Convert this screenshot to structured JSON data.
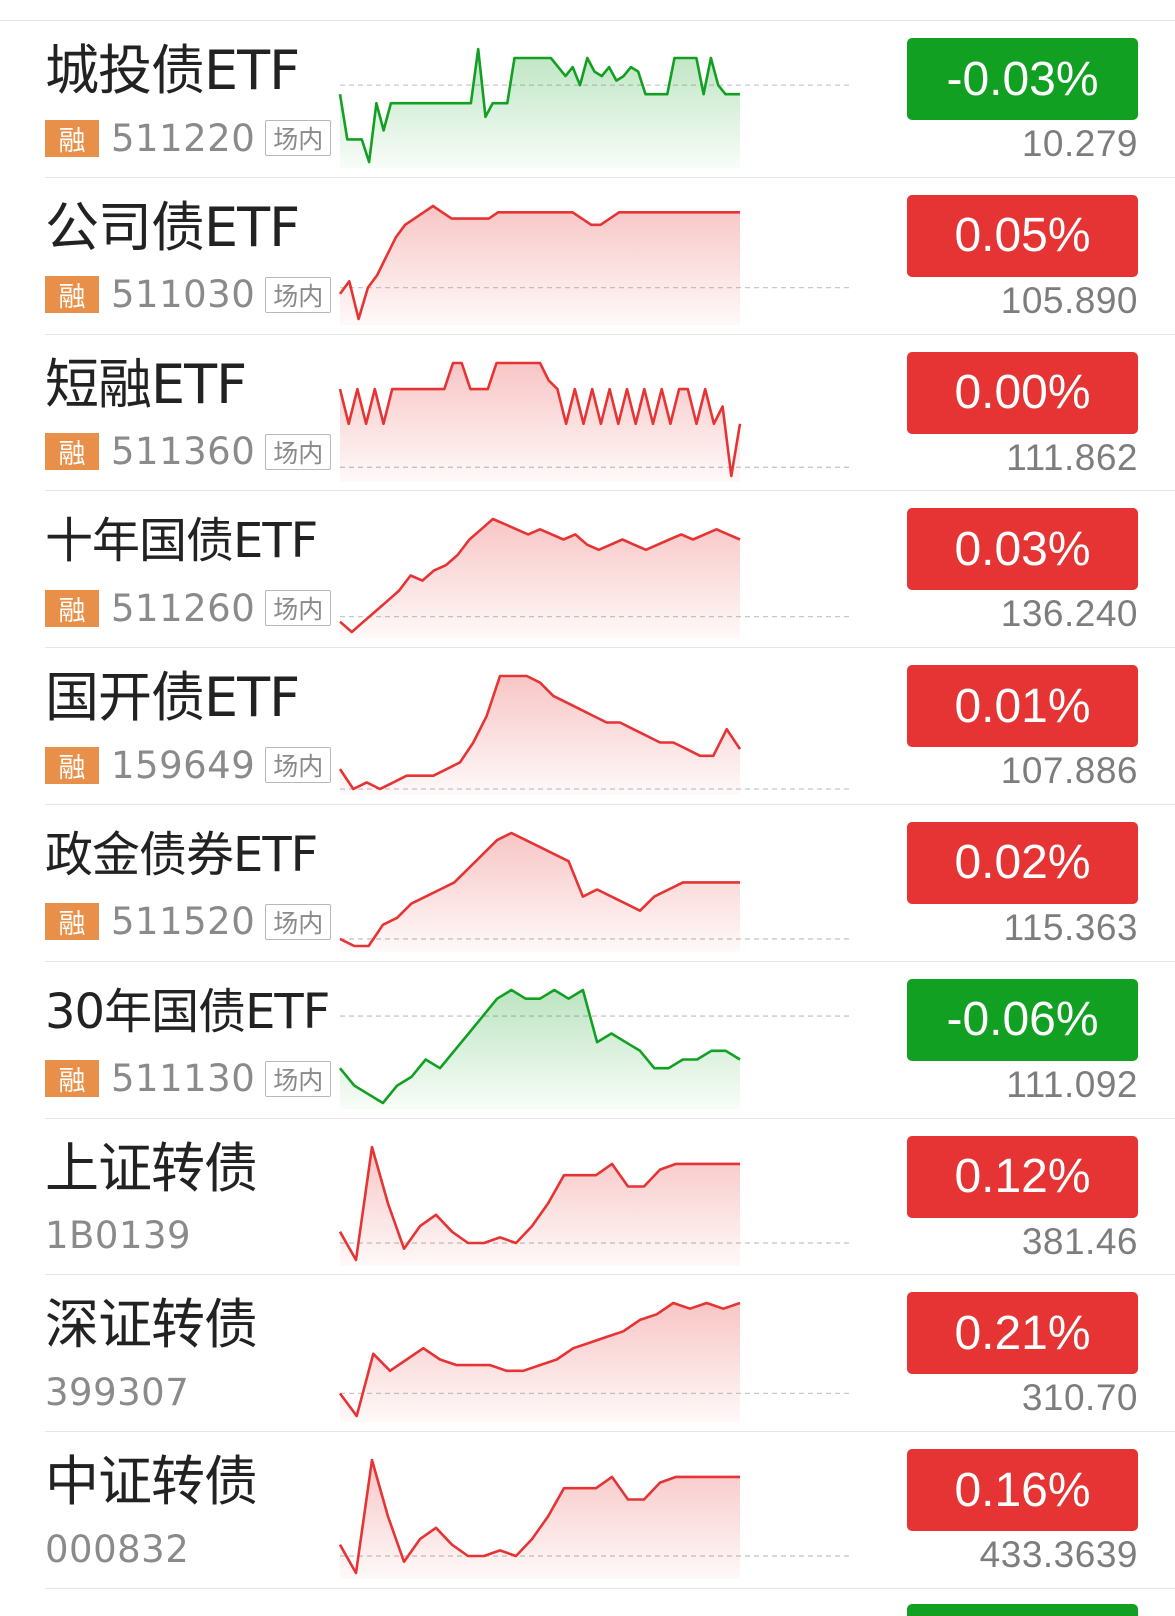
{
  "colors": {
    "up": "#e63333",
    "down": "#11a022",
    "badge": "#e8904a"
  },
  "rows": [
    {
      "name": "城投债ETF",
      "badge": "融",
      "code": "511220",
      "market": "场内",
      "change": "-0.03%",
      "price": "10.279",
      "trend": "down",
      "spark": [
        0.1,
        0.0,
        0.0,
        0.0,
        -0.05,
        0.08,
        0.02,
        0.08,
        0.08,
        0.08,
        0.08,
        0.08,
        0.08,
        0.08,
        0.08,
        0.08,
        0.08,
        0.08,
        0.08,
        0.2,
        0.05,
        0.08,
        0.08,
        0.08,
        0.18,
        0.18,
        0.18,
        0.18,
        0.18,
        0.18,
        0.16,
        0.14,
        0.16,
        0.12,
        0.18,
        0.15,
        0.14,
        0.16,
        0.13,
        0.14,
        0.16,
        0.15,
        0.1,
        0.1,
        0.1,
        0.1,
        0.18,
        0.18,
        0.18,
        0.18,
        0.1,
        0.18,
        0.12,
        0.1,
        0.1,
        0.1
      ],
      "base": 0.12
    },
    {
      "name": "公司债ETF",
      "badge": "融",
      "code": "511030",
      "market": "场内",
      "change": "0.05%",
      "price": "105.890",
      "trend": "up",
      "spark": [
        -0.01,
        0.01,
        -0.05,
        0.0,
        0.02,
        0.05,
        0.08,
        0.1,
        0.11,
        0.12,
        0.13,
        0.12,
        0.11,
        0.11,
        0.11,
        0.11,
        0.11,
        0.12,
        0.12,
        0.12,
        0.12,
        0.12,
        0.12,
        0.12,
        0.12,
        0.12,
        0.11,
        0.1,
        0.1,
        0.11,
        0.12,
        0.12,
        0.12,
        0.12,
        0.12,
        0.12,
        0.12,
        0.12,
        0.12,
        0.12,
        0.12,
        0.12,
        0.12,
        0.12
      ],
      "base": 0.0
    },
    {
      "name": "短融ETF",
      "badge": "融",
      "code": "511360",
      "market": "场内",
      "change": "0.00%",
      "price": "111.862",
      "trend": "up",
      "spark": [
        0.02,
        -0.02,
        0.02,
        -0.02,
        0.02,
        -0.02,
        0.02,
        0.02,
        0.02,
        0.02,
        0.02,
        0.02,
        0.02,
        0.05,
        0.05,
        0.02,
        0.02,
        0.02,
        0.05,
        0.05,
        0.05,
        0.05,
        0.05,
        0.05,
        0.03,
        0.02,
        -0.02,
        0.02,
        -0.02,
        0.02,
        -0.02,
        0.02,
        -0.02,
        0.02,
        -0.02,
        0.02,
        -0.02,
        0.02,
        -0.02,
        0.02,
        0.02,
        -0.02,
        0.02,
        -0.02,
        0.0,
        -0.08,
        -0.02
      ],
      "base": -0.07
    },
    {
      "name": "十年国债ETF",
      "badge": "融",
      "code": "511260",
      "market": "场内",
      "change": "0.03%",
      "price": "136.240",
      "trend": "up",
      "spark": [
        -0.01,
        -0.03,
        -0.01,
        0.01,
        0.03,
        0.05,
        0.08,
        0.07,
        0.09,
        0.1,
        0.12,
        0.15,
        0.17,
        0.19,
        0.18,
        0.17,
        0.16,
        0.17,
        0.16,
        0.15,
        0.16,
        0.14,
        0.13,
        0.14,
        0.15,
        0.14,
        0.13,
        0.14,
        0.15,
        0.16,
        0.15,
        0.16,
        0.17,
        0.16,
        0.15
      ],
      "base": 0.0
    },
    {
      "name": "国开债ETF",
      "badge": "融",
      "code": "159649",
      "market": "场内",
      "change": "0.01%",
      "price": "107.886",
      "trend": "up",
      "spark": [
        0.01,
        -0.02,
        -0.01,
        -0.02,
        -0.01,
        0.0,
        0.0,
        0.0,
        0.01,
        0.02,
        0.05,
        0.09,
        0.15,
        0.15,
        0.15,
        0.14,
        0.12,
        0.11,
        0.1,
        0.09,
        0.08,
        0.08,
        0.07,
        0.06,
        0.05,
        0.05,
        0.04,
        0.03,
        0.03,
        0.07,
        0.04
      ],
      "base": -0.02
    },
    {
      "name": "政金债券ETF",
      "badge": "融",
      "code": "511520",
      "market": "场内",
      "change": "0.02%",
      "price": "115.363",
      "trend": "up",
      "spark": [
        -0.04,
        -0.05,
        -0.05,
        -0.02,
        -0.01,
        0.01,
        0.02,
        0.03,
        0.04,
        0.06,
        0.08,
        0.1,
        0.11,
        0.1,
        0.09,
        0.08,
        0.07,
        0.02,
        0.03,
        0.02,
        0.01,
        0.0,
        0.02,
        0.03,
        0.04,
        0.04,
        0.04,
        0.04,
        0.04
      ],
      "base": -0.04
    },
    {
      "name": "30年国债ETF",
      "badge": "融",
      "code": "511130",
      "market": "场内",
      "change": "-0.06%",
      "price": "111.092",
      "trend": "down",
      "spark": [
        -0.01,
        -0.03,
        -0.04,
        -0.05,
        -0.03,
        -0.02,
        0.0,
        -0.01,
        0.01,
        0.03,
        0.05,
        0.07,
        0.08,
        0.07,
        0.07,
        0.08,
        0.07,
        0.08,
        0.02,
        0.03,
        0.02,
        0.01,
        -0.01,
        -0.01,
        0.0,
        0.0,
        0.01,
        0.01,
        0.0
      ],
      "base": 0.05
    },
    {
      "name": "上证转债",
      "badge": "",
      "code": "1B0139",
      "market": "",
      "change": "0.12%",
      "price": "381.46",
      "trend": "up",
      "spark": [
        0.0,
        -0.05,
        0.15,
        0.05,
        -0.03,
        0.01,
        0.03,
        0.0,
        -0.02,
        -0.02,
        -0.01,
        -0.02,
        0.01,
        0.05,
        0.1,
        0.1,
        0.1,
        0.12,
        0.08,
        0.08,
        0.11,
        0.12,
        0.12,
        0.12,
        0.12,
        0.12
      ],
      "base": -0.02
    },
    {
      "name": "深证转债",
      "badge": "",
      "code": "399307",
      "market": "",
      "change": "0.21%",
      "price": "310.70",
      "trend": "up",
      "spark": [
        0.0,
        -0.04,
        0.07,
        0.04,
        0.06,
        0.08,
        0.06,
        0.05,
        0.05,
        0.05,
        0.04,
        0.04,
        0.05,
        0.06,
        0.08,
        0.09,
        0.1,
        0.11,
        0.13,
        0.14,
        0.16,
        0.15,
        0.16,
        0.15,
        0.16
      ],
      "base": 0.0
    },
    {
      "name": "中证转债",
      "badge": "",
      "code": "000832",
      "market": "",
      "change": "0.16%",
      "price": "433.3639",
      "trend": "up",
      "spark": [
        0.0,
        -0.05,
        0.15,
        0.05,
        -0.03,
        0.01,
        0.03,
        0.0,
        -0.02,
        -0.02,
        -0.01,
        -0.02,
        0.01,
        0.05,
        0.1,
        0.1,
        0.1,
        0.12,
        0.08,
        0.08,
        0.11,
        0.12,
        0.12,
        0.12,
        0.12,
        0.12
      ],
      "base": -0.02
    }
  ]
}
